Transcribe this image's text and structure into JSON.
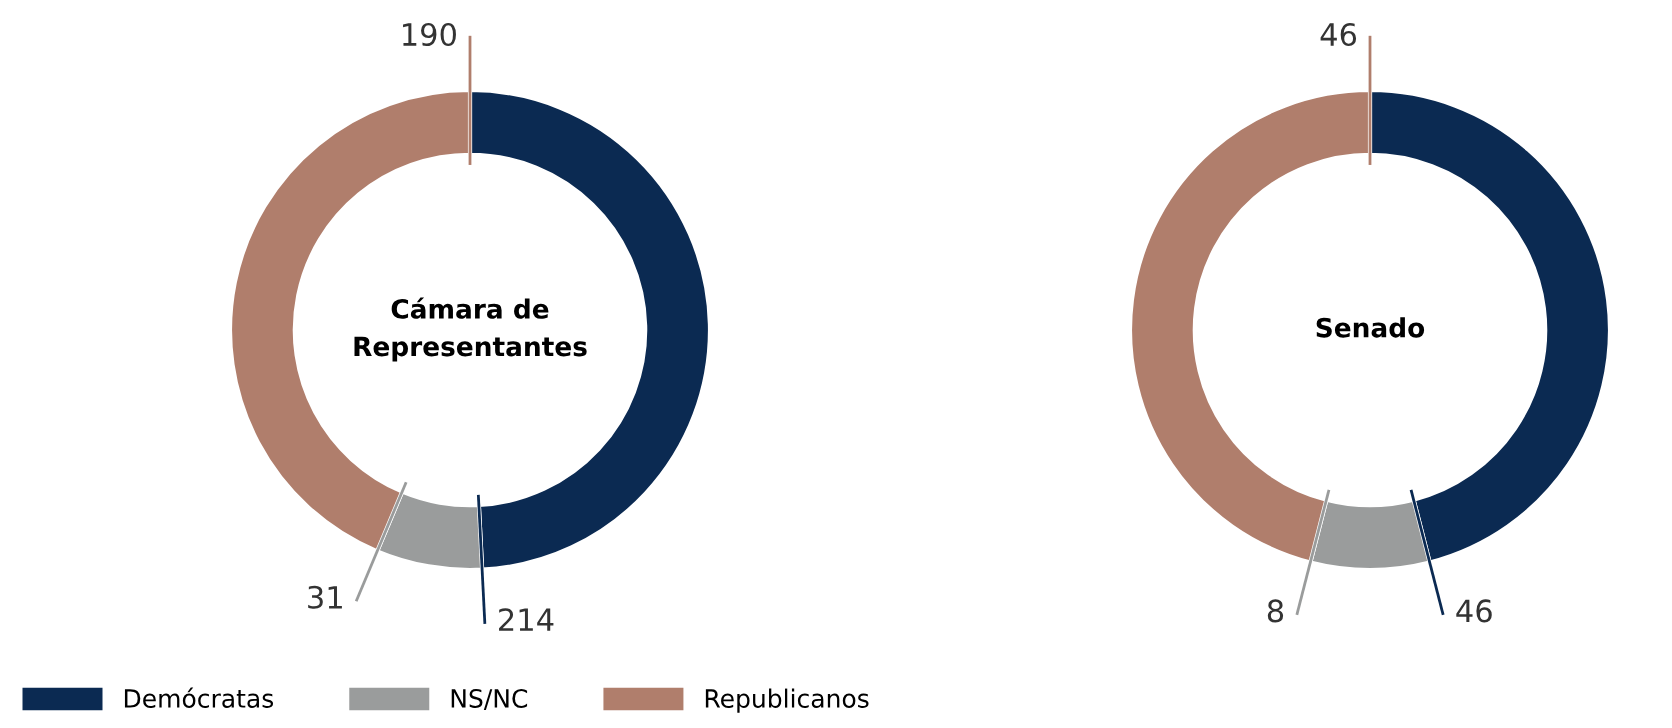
{
  "chart_data": [
    {
      "type": "donut",
      "title": "Cámara de\nRepresentantes",
      "categories": [
        "Demócratas",
        "NS/NC",
        "Republicanos"
      ],
      "values": [
        214,
        31,
        190
      ],
      "colors": [
        "#0b2a52",
        "#9a9c9c",
        "#b07e6c"
      ],
      "data_labels": true,
      "legend": "bottom"
    },
    {
      "type": "donut",
      "title": "Senado",
      "categories": [
        null,
        null,
        null
      ],
      "values": [
        46,
        8,
        46
      ],
      "colors": [
        "#0b2a52",
        "#9a9c9c",
        "#b07e6c"
      ],
      "data_labels": true
    }
  ]
}
